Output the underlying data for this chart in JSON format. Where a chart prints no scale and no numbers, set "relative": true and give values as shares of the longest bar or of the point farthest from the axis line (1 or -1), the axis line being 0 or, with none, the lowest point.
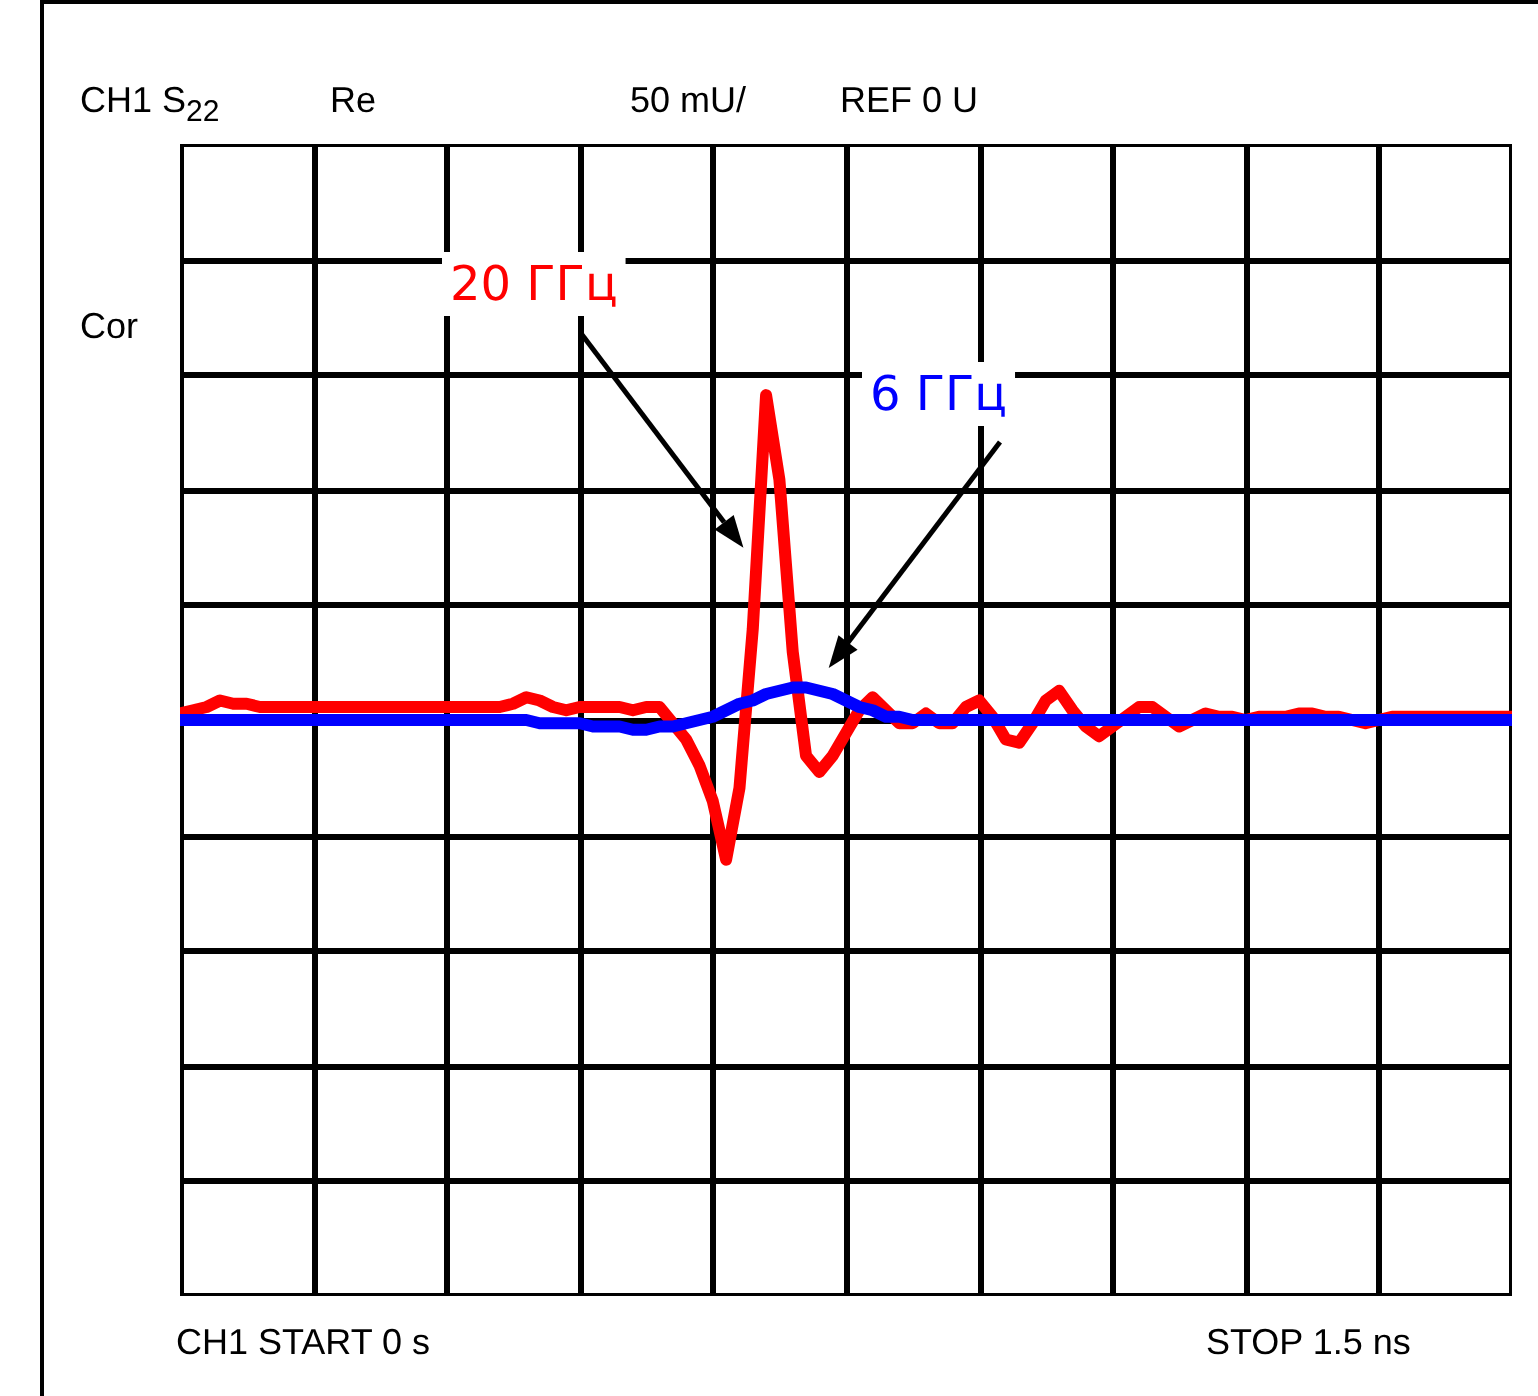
{
  "chart_data": {
    "type": "line",
    "relative": true,
    "grid": true,
    "annotations": [
      "CH1 S$_{22}$",
      "Re",
      "50 mU/",
      "REF 0 U",
      "Cor",
      "CH1 START 0 s",
      "STOP 1.5 ns"
    ],
    "categories": [
      null,
      null,
      null,
      null,
      null,
      null,
      null,
      null,
      null,
      null,
      null,
      null,
      null,
      null,
      null,
      null,
      null,
      null,
      null,
      null,
      null,
      null,
      null,
      null,
      null,
      null,
      null,
      null,
      null,
      null,
      null,
      null,
      null,
      null,
      null,
      null,
      null,
      null,
      null,
      null,
      null,
      null,
      null,
      null,
      null,
      null,
      null,
      null,
      null,
      null,
      null,
      null,
      null,
      null,
      null,
      null,
      null,
      null,
      null,
      null,
      null,
      null,
      null,
      null,
      null,
      null,
      null,
      null,
      null,
      null,
      null,
      null,
      null,
      null,
      null,
      null,
      null,
      null,
      null,
      null,
      null,
      null,
      null,
      null,
      null,
      null,
      null,
      null,
      null,
      null,
      null,
      null,
      null,
      null,
      null,
      null,
      null,
      null,
      null,
      null,
      null
    ],
    "series": [
      {
        "name": "20 ГГц",
        "color": "#ff0000",
        "values": [
          0.02,
          0.03,
          0.04,
          0.06,
          0.05,
          0.05,
          0.04,
          0.04,
          0.04,
          0.04,
          0.04,
          0.04,
          0.04,
          0.04,
          0.04,
          0.04,
          0.04,
          0.04,
          0.04,
          0.04,
          0.04,
          0.04,
          0.04,
          0.04,
          0.04,
          0.05,
          0.07,
          0.06,
          0.04,
          0.03,
          0.04,
          0.04,
          0.04,
          0.04,
          0.03,
          0.04,
          0.04,
          -0.01,
          -0.06,
          -0.14,
          -0.25,
          -0.43,
          -0.21,
          0.28,
          1,
          0.74,
          0.21,
          -0.11,
          -0.16,
          -0.11,
          -0.04,
          0.03,
          0.07,
          0.03,
          -0.01,
          -0.01,
          0.02,
          -0.01,
          -0.01,
          0.04,
          0.06,
          0.01,
          -0.06,
          -0.07,
          -0.01,
          0.06,
          0.09,
          0.03,
          -0.02,
          -0.05,
          -0.02,
          0.01,
          0.04,
          0.04,
          0.01,
          -0.02,
          0,
          0.02,
          0.01,
          0.01,
          0,
          0.01,
          0.01,
          0.01,
          0.02,
          0.02,
          0.01,
          0.01,
          0,
          -0.01,
          0,
          0.01,
          0.01,
          0.01,
          0.01,
          0.01,
          0.01,
          0.01,
          0.01,
          0.01,
          0.01
        ]
      },
      {
        "name": "6 ГГц",
        "color": "#0000ff",
        "values": [
          0,
          0,
          0,
          0,
          0,
          0,
          0,
          0,
          0,
          0,
          0,
          0,
          0,
          0,
          0,
          0,
          0,
          0,
          0,
          0,
          0,
          0,
          0,
          0,
          0,
          0,
          0,
          -0.01,
          -0.01,
          -0.01,
          -0.01,
          -0.02,
          -0.02,
          -0.02,
          -0.03,
          -0.03,
          -0.02,
          -0.02,
          -0.01,
          0,
          0.01,
          0.03,
          0.05,
          0.06,
          0.08,
          0.09,
          0.1,
          0.1,
          0.09,
          0.08,
          0.06,
          0.04,
          0.03,
          0.01,
          0.01,
          0,
          0,
          0,
          0,
          0,
          0,
          0,
          0,
          0,
          0,
          0,
          0,
          0,
          0,
          0,
          0,
          0,
          0,
          0,
          0,
          0,
          0,
          0,
          0,
          0,
          0,
          0,
          0,
          0,
          0,
          0,
          0,
          0,
          0,
          0,
          0,
          0,
          0,
          0,
          0,
          0,
          0,
          0,
          0,
          0,
          0
        ]
      }
    ]
  }
}
